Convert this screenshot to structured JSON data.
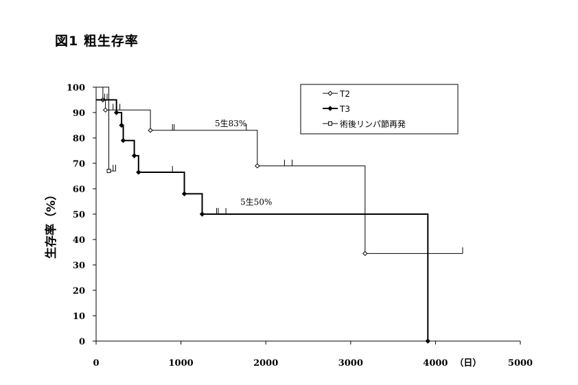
{
  "figure_title": "図1 粗生存率",
  "chart_data": {
    "type": "line",
    "subtype": "kaplan-meier-step",
    "ylabel": "生存率（%）",
    "x_unit_label": "（日）",
    "xlim": [
      0,
      5000
    ],
    "ylim": [
      0,
      100
    ],
    "x_ticks": [
      0,
      1000,
      2000,
      3000,
      4000,
      5000
    ],
    "y_ticks": [
      0,
      10,
      20,
      30,
      40,
      50,
      60,
      70,
      80,
      90,
      100
    ],
    "grid": false,
    "legend_position": "top-right",
    "series": [
      {
        "name": "T2",
        "marker": "open-diamond",
        "line_width": 1,
        "steps": [
          [
            0,
            100
          ],
          [
            80,
            95
          ],
          [
            110,
            91
          ],
          [
            640,
            83
          ],
          [
            1900,
            69
          ],
          [
            3170,
            34.5
          ],
          [
            4320,
            34.5
          ]
        ],
        "censored_x": [
          200,
          280,
          900,
          920,
          1770,
          2220,
          2310,
          4320
        ]
      },
      {
        "name": "T3",
        "marker": "filled-diamond",
        "line_width": 2,
        "steps": [
          [
            0,
            95
          ],
          [
            240,
            90
          ],
          [
            300,
            85
          ],
          [
            320,
            79
          ],
          [
            450,
            73
          ],
          [
            500,
            66.5
          ],
          [
            1040,
            58
          ],
          [
            1250,
            50
          ],
          [
            3910,
            0
          ]
        ],
        "censored_x": [
          100,
          130,
          900,
          1420,
          1440,
          1530
        ]
      },
      {
        "name": "術後リンパ節再発",
        "marker": "open-square",
        "line_width": 1,
        "steps": [
          [
            0,
            100
          ],
          [
            150,
            67
          ],
          [
            230,
            67
          ]
        ],
        "censored_x": [
          200,
          230
        ]
      }
    ],
    "annotations": [
      {
        "text": "5生83%",
        "x": 1400,
        "y": 83
      },
      {
        "text": "5生50%",
        "x": 1700,
        "y": 52
      }
    ]
  }
}
